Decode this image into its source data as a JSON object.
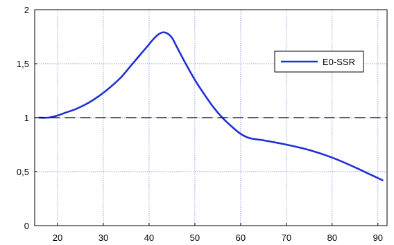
{
  "chart_data": {
    "type": "line",
    "x_ticks": [
      "20",
      "30",
      "40",
      "50",
      "60",
      "70",
      "80",
      "90"
    ],
    "y_ticks": [
      "0",
      "0,5",
      "1",
      "1,5",
      "2"
    ],
    "xlim": [
      15,
      92
    ],
    "ylim": [
      0,
      2
    ],
    "grid": true,
    "legend_position": "top-right",
    "series": [
      {
        "name": "E0-SSR",
        "color": "#1f2fd6",
        "x": [
          16,
          18,
          20,
          22,
          24,
          26,
          28,
          30,
          32,
          34,
          36,
          38,
          40,
          41,
          42,
          43,
          44,
          45,
          46,
          48,
          50,
          52,
          54,
          56,
          58,
          60,
          62,
          65,
          70,
          75,
          80,
          85,
          88,
          91
        ],
        "y": [
          1.0,
          1.0,
          1.02,
          1.05,
          1.08,
          1.12,
          1.17,
          1.23,
          1.3,
          1.38,
          1.48,
          1.58,
          1.68,
          1.73,
          1.77,
          1.79,
          1.78,
          1.74,
          1.66,
          1.5,
          1.35,
          1.22,
          1.1,
          1.0,
          0.92,
          0.85,
          0.81,
          0.79,
          0.75,
          0.7,
          0.63,
          0.54,
          0.48,
          0.42
        ]
      },
      {
        "color": "#000000",
        "style": "dashed",
        "x": [
          15,
          92
        ],
        "y": [
          1.0,
          1.0
        ]
      }
    ]
  }
}
